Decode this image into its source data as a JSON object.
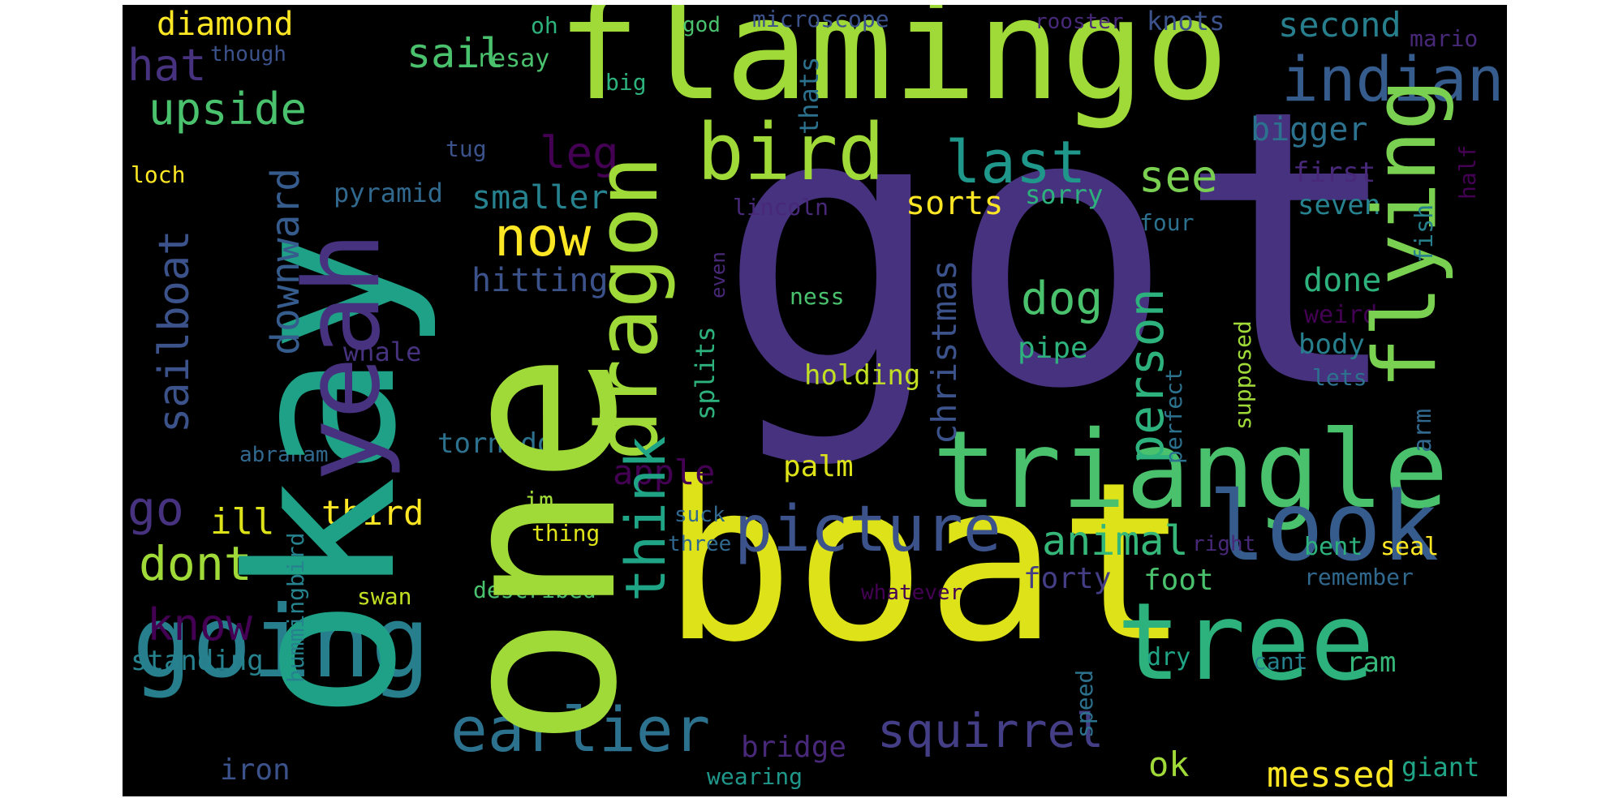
{
  "palette": {
    "background": "#000000",
    "yellow": "#fde725",
    "lime": "#a0da39",
    "green": "#4ac16d",
    "teal": "#1fa187",
    "cyan": "#277f8e",
    "blue": "#365c8d",
    "indigo": "#46327e",
    "purple": "#440154"
  },
  "words": [
    {
      "text": "got",
      "color": "#46327e"
    },
    {
      "text": "boat",
      "color": "#dde318"
    },
    {
      "text": "okay",
      "color": "#1fa187"
    },
    {
      "text": "one",
      "color": "#a0da39"
    },
    {
      "text": "flamingo",
      "color": "#a0da39"
    },
    {
      "text": "triangle",
      "color": "#4ac16d"
    },
    {
      "text": "tree",
      "color": "#2db27d"
    },
    {
      "text": "going",
      "color": "#277f8e"
    },
    {
      "text": "look",
      "color": "#365c8d"
    },
    {
      "text": "yeah",
      "color": "#46327e"
    },
    {
      "text": "bird",
      "color": "#a0da39"
    },
    {
      "text": "dragon",
      "color": "#a0da39"
    },
    {
      "text": "flying",
      "color": "#7ad151"
    },
    {
      "text": "picture",
      "color": "#3b528b"
    },
    {
      "text": "earlier",
      "color": "#2c728e"
    },
    {
      "text": "indian",
      "color": "#365c8d"
    },
    {
      "text": "last",
      "color": "#1f988b"
    },
    {
      "text": "think",
      "color": "#20a486"
    },
    {
      "text": "squirrel",
      "color": "#433e85"
    },
    {
      "text": "now",
      "color": "#fde725"
    },
    {
      "text": "person",
      "color": "#2db27d"
    },
    {
      "text": "animal",
      "color": "#35b779"
    },
    {
      "text": "dont",
      "color": "#a0da39"
    },
    {
      "text": "see",
      "color": "#7ad151"
    },
    {
      "text": "sail",
      "color": "#4ac16d"
    },
    {
      "text": "upside",
      "color": "#4ac16d"
    },
    {
      "text": "hat",
      "color": "#46327e"
    },
    {
      "text": "go",
      "color": "#46327e"
    },
    {
      "text": "know",
      "color": "#440154"
    },
    {
      "text": "dog",
      "color": "#4ac16d"
    },
    {
      "text": "leg",
      "color": "#440154"
    },
    {
      "text": "messed",
      "color": "#fde725"
    },
    {
      "text": "sailboat",
      "color": "#3b528b"
    },
    {
      "text": "downward",
      "color": "#365c8d"
    },
    {
      "text": "christmas",
      "color": "#3b528b"
    },
    {
      "text": "second",
      "color": "#277f8e"
    },
    {
      "text": "diamond",
      "color": "#fde725"
    },
    {
      "text": "bigger",
      "color": "#2c728e"
    },
    {
      "text": "smaller",
      "color": "#26828e"
    },
    {
      "text": "sorts",
      "color": "#fde725"
    },
    {
      "text": "hitting",
      "color": "#3b528b"
    },
    {
      "text": "third",
      "color": "#fde725"
    },
    {
      "text": "apple",
      "color": "#440154"
    },
    {
      "text": "ill",
      "color": "#dde318"
    },
    {
      "text": "bridge",
      "color": "#482878"
    },
    {
      "text": "iron",
      "color": "#3b528b"
    },
    {
      "text": "ok",
      "color": "#a0da39"
    },
    {
      "text": "done",
      "color": "#2db27d"
    },
    {
      "text": "forty",
      "color": "#433e85"
    },
    {
      "text": "foot",
      "color": "#4ac16d"
    },
    {
      "text": "tornado",
      "color": "#2c728e"
    },
    {
      "text": "standing",
      "color": "#26828e"
    },
    {
      "text": "pyramid",
      "color": "#31688e"
    },
    {
      "text": "splits",
      "color": "#2db27d"
    },
    {
      "text": "palm",
      "color": "#dde318"
    },
    {
      "text": "holding",
      "color": "#c2df23"
    },
    {
      "text": "pipe",
      "color": "#2db27d"
    },
    {
      "text": "whale",
      "color": "#46327e"
    },
    {
      "text": "first",
      "color": "#482878"
    },
    {
      "text": "seven",
      "color": "#26828e"
    },
    {
      "text": "weird",
      "color": "#440154"
    },
    {
      "text": "body",
      "color": "#277f8e"
    },
    {
      "text": "fish",
      "color": "#277f8e"
    },
    {
      "text": "thats",
      "color": "#2c728e"
    },
    {
      "text": "resay",
      "color": "#4ac16d"
    },
    {
      "text": "big",
      "color": "#2db27d"
    },
    {
      "text": "tug",
      "color": "#3b528b"
    },
    {
      "text": "loch",
      "color": "#fde725"
    },
    {
      "text": "abraham",
      "color": "#31688e"
    },
    {
      "text": "lincoln",
      "color": "#482878"
    },
    {
      "text": "sorry",
      "color": "#2db27d"
    },
    {
      "text": "four",
      "color": "#2c728e"
    },
    {
      "text": "ness",
      "color": "#4ac16d"
    },
    {
      "text": "lets",
      "color": "#2c728e"
    },
    {
      "text": "supposed",
      "color": "#a0da39"
    },
    {
      "text": "perfect",
      "color": "#2c728e"
    },
    {
      "text": "arm",
      "color": "#31688e"
    },
    {
      "text": "half",
      "color": "#440154"
    },
    {
      "text": "microscope",
      "color": "#3b528b"
    },
    {
      "text": "knots",
      "color": "#3b528b"
    },
    {
      "text": "rooster",
      "color": "#482878"
    },
    {
      "text": "mario",
      "color": "#482878"
    },
    {
      "text": "god",
      "color": "#4ac16d"
    },
    {
      "text": "oh",
      "color": "#2db27d"
    },
    {
      "text": "though",
      "color": "#3b528b"
    },
    {
      "text": "hummingbird",
      "color": "#26828e"
    },
    {
      "text": "swan",
      "color": "#c2df23"
    },
    {
      "text": "described",
      "color": "#4ac16d"
    },
    {
      "text": "im",
      "color": "#a0da39"
    },
    {
      "text": "thing",
      "color": "#dde318"
    },
    {
      "text": "suck",
      "color": "#31688e"
    },
    {
      "text": "three",
      "color": "#31688e"
    },
    {
      "text": "right",
      "color": "#482878"
    },
    {
      "text": "bent",
      "color": "#2db27d"
    },
    {
      "text": "seal",
      "color": "#fde725"
    },
    {
      "text": "remember",
      "color": "#31688e"
    },
    {
      "text": "whatever",
      "color": "#440154"
    },
    {
      "text": "dry",
      "color": "#20a486"
    },
    {
      "text": "cant",
      "color": "#26828e"
    },
    {
      "text": "ram",
      "color": "#35b779"
    },
    {
      "text": "speed",
      "color": "#2c728e"
    },
    {
      "text": "wearing",
      "color": "#1f988b"
    },
    {
      "text": "giant",
      "color": "#20a486"
    },
    {
      "text": "even",
      "color": "#482878"
    }
  ]
}
